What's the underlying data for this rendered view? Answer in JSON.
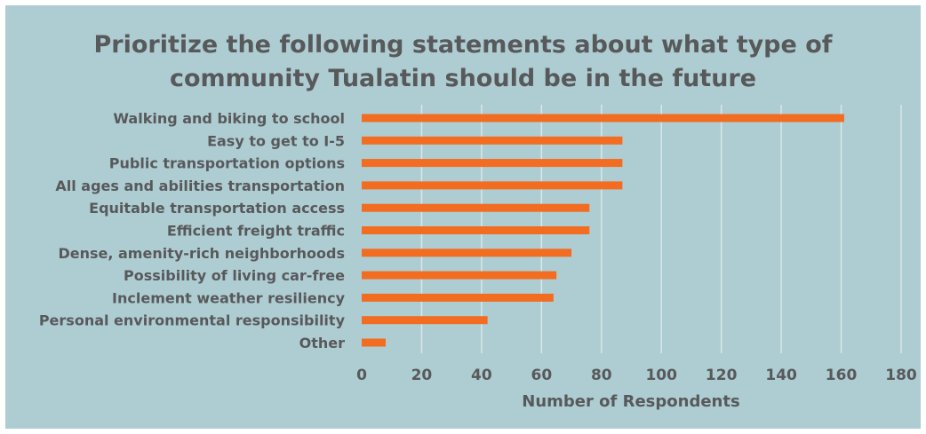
{
  "chart_data": {
    "type": "bar",
    "orientation": "horizontal",
    "title": "Prioritize the following statements about what type of community Tualatin should be in the future",
    "title_lines": [
      "Prioritize the following statements about what type of",
      "community Tualatin should be in the future"
    ],
    "xlabel": "Number of Respondents",
    "ylabel": "",
    "categories": [
      "Walking and biking to school",
      "Easy to get to I-5",
      "Public transportation options",
      "All ages and abilities transportation",
      "Equitable transportation access",
      "Efficient freight traffic",
      "Dense, amenity-rich neighborhoods",
      "Possibility of living car-free",
      "Inclement weather resiliency",
      "Personal environmental responsibility",
      "Other"
    ],
    "values": [
      161,
      87,
      87,
      87,
      76,
      76,
      70,
      65,
      64,
      42,
      8
    ],
    "xlim": [
      0,
      180
    ],
    "xticks": [
      "0",
      "20",
      "40",
      "60",
      "80",
      "100",
      "120",
      "140",
      "160",
      "180"
    ],
    "grid": "vertical",
    "legend": "none",
    "colors": {
      "bar": "#f26c21",
      "background": "#aecdd2",
      "grid": "#d9e6e8",
      "text": "#58595b"
    }
  }
}
